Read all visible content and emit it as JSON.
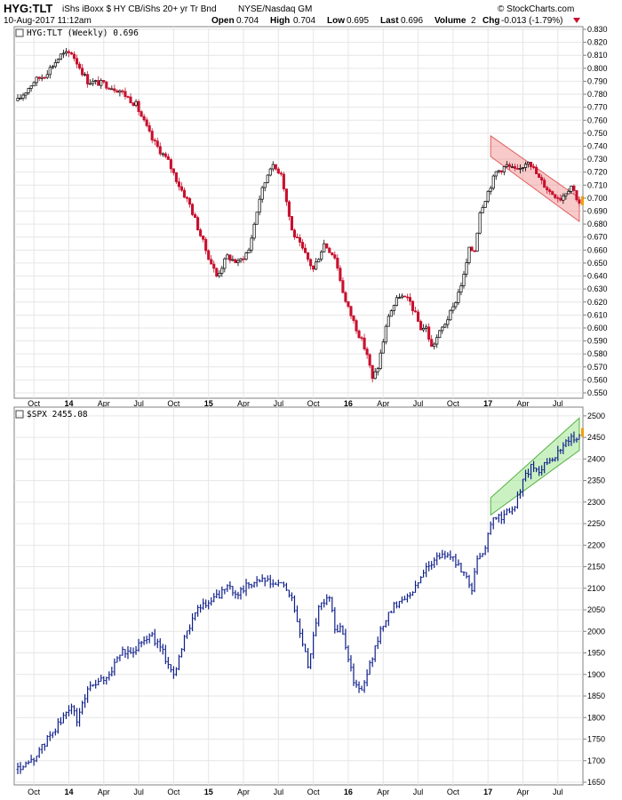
{
  "header": {
    "symbol": "HYG:TLT",
    "description": "iShs iBoxx $ HY CB/iShs 20+ yr Tr Bnd",
    "exchange": "NYSE/Nasdaq GM",
    "date": "10-Aug-2017 11:12am",
    "open_label": "Open",
    "open": "0.704",
    "high_label": "High",
    "high": "0.704",
    "low_label": "Low",
    "low": "0.695",
    "last_label": "Last",
    "last": "0.696",
    "volume_label": "Volume",
    "volume": "2",
    "chg_label": "Chg",
    "chg": "-0.013 (-1.79%)",
    "brand": "© StockCharts.com"
  },
  "colors": {
    "up": "#000000",
    "down": "#c8102e",
    "spx": "#0f1f8a",
    "red_channel": "#f08a8a",
    "green_channel": "#8be07a"
  },
  "chart_data": [
    {
      "type": "candlestick",
      "legend": "HYG:TLT (Weekly) 0.696",
      "ylim": [
        0.55,
        0.83
      ],
      "yticks": [
        "0.830",
        "0.820",
        "0.810",
        "0.800",
        "0.790",
        "0.780",
        "0.770",
        "0.760",
        "0.750",
        "0.740",
        "0.730",
        "0.720",
        "0.710",
        "0.700",
        "0.690",
        "0.680",
        "0.670",
        "0.660",
        "0.650",
        "0.640",
        "0.630",
        "0.620",
        "0.610",
        "0.600",
        "0.590",
        "0.580",
        "0.570",
        "0.560",
        "0.550"
      ],
      "ytick_values": [
        0.83,
        0.82,
        0.81,
        0.8,
        0.79,
        0.78,
        0.77,
        0.76,
        0.75,
        0.74,
        0.73,
        0.72,
        0.71,
        0.7,
        0.69,
        0.68,
        0.67,
        0.66,
        0.65,
        0.64,
        0.63,
        0.62,
        0.61,
        0.6,
        0.59,
        0.58,
        0.57,
        0.56,
        0.55
      ],
      "xlabels": [
        "Oct",
        "14",
        "Apr",
        "Jul",
        "Oct",
        "15",
        "Apr",
        "Jul",
        "Oct",
        "16",
        "Apr",
        "Jul",
        "Oct",
        "17",
        "Apr",
        "Jul"
      ],
      "xlabel_index": [
        6,
        19,
        32,
        45,
        58,
        71,
        84,
        97,
        110,
        123,
        136,
        149,
        162,
        175,
        188,
        201
      ],
      "n_weeks": 210,
      "anchors": [
        [
          0,
          0.775
        ],
        [
          6,
          0.79
        ],
        [
          10,
          0.795
        ],
        [
          16,
          0.81
        ],
        [
          20,
          0.812
        ],
        [
          26,
          0.79
        ],
        [
          32,
          0.788
        ],
        [
          38,
          0.783
        ],
        [
          44,
          0.772
        ],
        [
          50,
          0.745
        ],
        [
          56,
          0.728
        ],
        [
          60,
          0.71
        ],
        [
          64,
          0.695
        ],
        [
          70,
          0.66
        ],
        [
          74,
          0.64
        ],
        [
          78,
          0.655
        ],
        [
          82,
          0.65
        ],
        [
          86,
          0.66
        ],
        [
          90,
          0.7
        ],
        [
          94,
          0.725
        ],
        [
          98,
          0.72
        ],
        [
          102,
          0.675
        ],
        [
          106,
          0.66
        ],
        [
          110,
          0.645
        ],
        [
          114,
          0.665
        ],
        [
          118,
          0.655
        ],
        [
          122,
          0.62
        ],
        [
          126,
          0.6
        ],
        [
          130,
          0.58
        ],
        [
          132,
          0.56
        ],
        [
          134,
          0.57
        ],
        [
          138,
          0.61
        ],
        [
          142,
          0.625
        ],
        [
          146,
          0.62
        ],
        [
          150,
          0.6
        ],
        [
          152,
          0.6
        ],
        [
          154,
          0.585
        ],
        [
          158,
          0.6
        ],
        [
          162,
          0.615
        ],
        [
          166,
          0.64
        ],
        [
          168,
          0.66
        ],
        [
          170,
          0.66
        ],
        [
          172,
          0.69
        ],
        [
          176,
          0.71
        ],
        [
          178,
          0.72
        ],
        [
          182,
          0.725
        ],
        [
          186,
          0.72
        ],
        [
          190,
          0.73
        ],
        [
          194,
          0.715
        ],
        [
          198,
          0.705
        ],
        [
          202,
          0.7
        ],
        [
          206,
          0.71
        ],
        [
          209,
          0.696
        ]
      ],
      "channel": [
        [
          176,
          0.732,
          0.748
        ],
        [
          209,
          0.682,
          0.7
        ]
      ],
      "last_value": 0.696
    },
    {
      "type": "line",
      "legend": "$SPX 2455.08",
      "ylim": [
        1650,
        2510
      ],
      "yticks": [
        "2500",
        "2450",
        "2400",
        "2350",
        "2300",
        "2250",
        "2200",
        "2150",
        "2100",
        "2050",
        "2000",
        "1950",
        "1900",
        "1850",
        "1800",
        "1750",
        "1700",
        "1650"
      ],
      "ytick_values": [
        2500,
        2450,
        2400,
        2350,
        2300,
        2250,
        2200,
        2150,
        2100,
        2050,
        2000,
        1950,
        1900,
        1850,
        1800,
        1750,
        1700,
        1650
      ],
      "xlabels": [
        "Oct",
        "14",
        "Apr",
        "Jul",
        "Oct",
        "15",
        "Apr",
        "Jul",
        "Oct",
        "16",
        "Apr",
        "Jul",
        "Oct",
        "17",
        "Apr",
        "Jul"
      ],
      "xlabel_index": [
        6,
        19,
        32,
        45,
        58,
        71,
        84,
        97,
        110,
        123,
        136,
        149,
        162,
        175,
        188,
        201
      ],
      "n_weeks": 210,
      "anchors": [
        [
          0,
          1680
        ],
        [
          4,
          1690
        ],
        [
          8,
          1720
        ],
        [
          12,
          1760
        ],
        [
          16,
          1790
        ],
        [
          20,
          1830
        ],
        [
          22,
          1790
        ],
        [
          26,
          1870
        ],
        [
          30,
          1880
        ],
        [
          34,
          1900
        ],
        [
          38,
          1950
        ],
        [
          42,
          1950
        ],
        [
          46,
          1980
        ],
        [
          50,
          1990
        ],
        [
          54,
          1950
        ],
        [
          58,
          1900
        ],
        [
          62,
          1980
        ],
        [
          66,
          2050
        ],
        [
          70,
          2060
        ],
        [
          74,
          2080
        ],
        [
          78,
          2100
        ],
        [
          82,
          2090
        ],
        [
          86,
          2110
        ],
        [
          90,
          2120
        ],
        [
          94,
          2110
        ],
        [
          98,
          2110
        ],
        [
          102,
          2080
        ],
        [
          104,
          2020
        ],
        [
          108,
          1920
        ],
        [
          112,
          2060
        ],
        [
          116,
          2080
        ],
        [
          118,
          2010
        ],
        [
          121,
          2000
        ],
        [
          125,
          1880
        ],
        [
          128,
          1860
        ],
        [
          132,
          1940
        ],
        [
          136,
          2020
        ],
        [
          140,
          2060
        ],
        [
          144,
          2080
        ],
        [
          148,
          2100
        ],
        [
          152,
          2150
        ],
        [
          156,
          2170
        ],
        [
          160,
          2180
        ],
        [
          164,
          2150
        ],
        [
          167,
          2130
        ],
        [
          169,
          2100
        ],
        [
          171,
          2160
        ],
        [
          174,
          2200
        ],
        [
          177,
          2260
        ],
        [
          181,
          2270
        ],
        [
          185,
          2290
        ],
        [
          188,
          2350
        ],
        [
          191,
          2380
        ],
        [
          194,
          2370
        ],
        [
          198,
          2400
        ],
        [
          202,
          2420
        ],
        [
          206,
          2450
        ],
        [
          209,
          2455
        ]
      ],
      "channel": [
        [
          176,
          2270,
          2310
        ],
        [
          209,
          2420,
          2495
        ]
      ],
      "last_value": 2455.08
    }
  ]
}
